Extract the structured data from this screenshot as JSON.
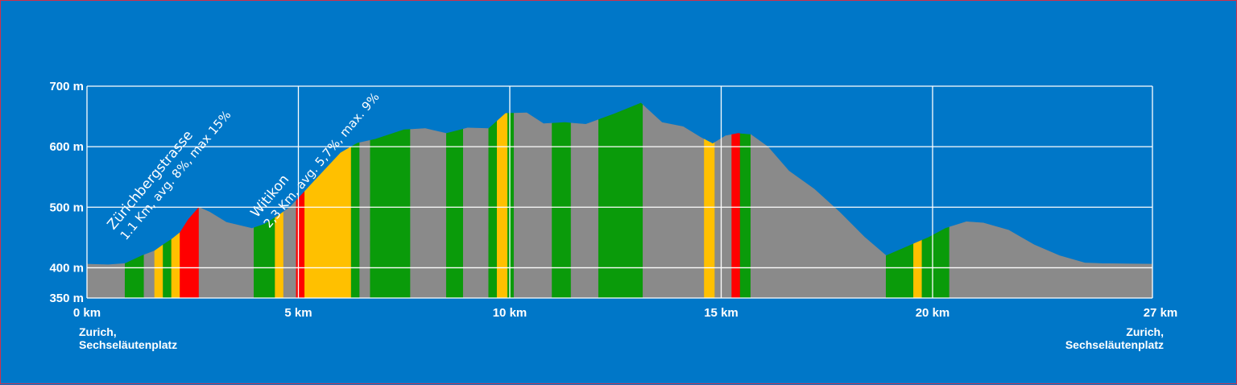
{
  "chart_data": {
    "type": "area",
    "title": "",
    "xlabel": "",
    "ylabel": "",
    "xlim": [
      0,
      27
    ],
    "ylim": [
      350,
      700
    ],
    "x_ticks": [
      {
        "value": 0,
        "label": "0 km"
      },
      {
        "value": 5,
        "label": "5 km"
      },
      {
        "value": 10,
        "label": "10 km"
      },
      {
        "value": 15,
        "label": "15 km"
      },
      {
        "value": 20,
        "label": "20 km"
      },
      {
        "value": 25.2,
        "label": "27 km"
      }
    ],
    "y_ticks": [
      {
        "value": 350,
        "label": "350 m"
      },
      {
        "value": 400,
        "label": "400 m"
      },
      {
        "value": 500,
        "label": "500 m"
      },
      {
        "value": 600,
        "label": "600 m"
      },
      {
        "value": 700,
        "label": "700 m"
      }
    ],
    "grid": true,
    "start_label": [
      "Zurich,",
      "Sechseläutenplatz"
    ],
    "end_label": [
      "Zurich,",
      "Sechseläutenplatz"
    ],
    "climbs": [
      {
        "name": "Zürichbergstrasse",
        "detail": "1.1 Km, avg. 8%, max 15%",
        "start_km": 1.5,
        "end_km": 2.6
      },
      {
        "name": "Witikon",
        "detail": "2,3 Km, avg. 5,7%, max. 9%",
        "start_km": 3.7,
        "end_km": 6.0
      }
    ],
    "gradient_colors": {
      "flat": "#8a8a8a",
      "moderate": "#0a9b0a",
      "steep": "#ffc000",
      "very_steep": "#ff0000"
    },
    "profile": [
      {
        "x": 0.0,
        "y": 406
      },
      {
        "x": 0.5,
        "y": 405
      },
      {
        "x": 0.9,
        "y": 407
      },
      {
        "x": 1.3,
        "y": 420
      },
      {
        "x": 1.6,
        "y": 428
      },
      {
        "x": 1.8,
        "y": 438
      },
      {
        "x": 2.0,
        "y": 447
      },
      {
        "x": 2.2,
        "y": 458
      },
      {
        "x": 2.4,
        "y": 480
      },
      {
        "x": 2.65,
        "y": 500
      },
      {
        "x": 2.9,
        "y": 492
      },
      {
        "x": 3.3,
        "y": 475
      },
      {
        "x": 3.9,
        "y": 465
      },
      {
        "x": 4.2,
        "y": 472
      },
      {
        "x": 4.5,
        "y": 485
      },
      {
        "x": 4.8,
        "y": 500
      },
      {
        "x": 5.2,
        "y": 530
      },
      {
        "x": 5.6,
        "y": 560
      },
      {
        "x": 6.0,
        "y": 590
      },
      {
        "x": 6.4,
        "y": 606
      },
      {
        "x": 6.8,
        "y": 612
      },
      {
        "x": 7.5,
        "y": 628
      },
      {
        "x": 8.0,
        "y": 630
      },
      {
        "x": 8.5,
        "y": 622
      },
      {
        "x": 9.0,
        "y": 631
      },
      {
        "x": 9.5,
        "y": 630
      },
      {
        "x": 9.9,
        "y": 655
      },
      {
        "x": 10.4,
        "y": 656
      },
      {
        "x": 10.8,
        "y": 638
      },
      {
        "x": 11.3,
        "y": 640
      },
      {
        "x": 11.8,
        "y": 637
      },
      {
        "x": 12.5,
        "y": 655
      },
      {
        "x": 13.1,
        "y": 672
      },
      {
        "x": 13.6,
        "y": 640
      },
      {
        "x": 14.1,
        "y": 633
      },
      {
        "x": 14.5,
        "y": 616
      },
      {
        "x": 14.8,
        "y": 605
      },
      {
        "x": 15.1,
        "y": 618
      },
      {
        "x": 15.4,
        "y": 622
      },
      {
        "x": 15.7,
        "y": 620
      },
      {
        "x": 16.1,
        "y": 600
      },
      {
        "x": 16.6,
        "y": 560
      },
      {
        "x": 17.2,
        "y": 530
      },
      {
        "x": 17.8,
        "y": 492
      },
      {
        "x": 18.4,
        "y": 450
      },
      {
        "x": 18.9,
        "y": 420
      },
      {
        "x": 19.4,
        "y": 435
      },
      {
        "x": 19.9,
        "y": 450
      },
      {
        "x": 20.3,
        "y": 465
      },
      {
        "x": 20.8,
        "y": 476
      },
      {
        "x": 21.2,
        "y": 474
      },
      {
        "x": 21.8,
        "y": 462
      },
      {
        "x": 22.4,
        "y": 438
      },
      {
        "x": 23.0,
        "y": 420
      },
      {
        "x": 23.6,
        "y": 408
      },
      {
        "x": 24.0,
        "y": 407
      },
      {
        "x": 25.2,
        "y": 406
      }
    ],
    "segments": [
      {
        "from": 0.0,
        "to": 0.9,
        "grade": "flat"
      },
      {
        "from": 0.9,
        "to": 1.35,
        "grade": "moderate"
      },
      {
        "from": 1.35,
        "to": 1.6,
        "grade": "flat"
      },
      {
        "from": 1.6,
        "to": 1.8,
        "grade": "steep"
      },
      {
        "from": 1.8,
        "to": 2.0,
        "grade": "moderate"
      },
      {
        "from": 2.0,
        "to": 2.2,
        "grade": "steep"
      },
      {
        "from": 2.2,
        "to": 2.65,
        "grade": "very_steep"
      },
      {
        "from": 2.65,
        "to": 3.95,
        "grade": "flat"
      },
      {
        "from": 3.95,
        "to": 4.45,
        "grade": "moderate"
      },
      {
        "from": 4.45,
        "to": 4.65,
        "grade": "steep"
      },
      {
        "from": 4.65,
        "to": 4.95,
        "grade": "flat"
      },
      {
        "from": 4.95,
        "to": 5.15,
        "grade": "very_steep"
      },
      {
        "from": 5.15,
        "to": 6.25,
        "grade": "steep"
      },
      {
        "from": 6.25,
        "to": 6.45,
        "grade": "moderate"
      },
      {
        "from": 6.45,
        "to": 6.7,
        "grade": "flat"
      },
      {
        "from": 6.7,
        "to": 7.65,
        "grade": "moderate"
      },
      {
        "from": 7.65,
        "to": 8.5,
        "grade": "flat"
      },
      {
        "from": 8.5,
        "to": 8.9,
        "grade": "moderate"
      },
      {
        "from": 8.9,
        "to": 9.5,
        "grade": "flat"
      },
      {
        "from": 9.5,
        "to": 9.7,
        "grade": "moderate"
      },
      {
        "from": 9.7,
        "to": 9.95,
        "grade": "steep"
      },
      {
        "from": 9.95,
        "to": 10.1,
        "grade": "moderate"
      },
      {
        "from": 10.1,
        "to": 11.0,
        "grade": "flat"
      },
      {
        "from": 11.0,
        "to": 11.45,
        "grade": "moderate"
      },
      {
        "from": 11.45,
        "to": 12.1,
        "grade": "flat"
      },
      {
        "from": 12.1,
        "to": 13.15,
        "grade": "moderate"
      },
      {
        "from": 13.15,
        "to": 14.6,
        "grade": "flat"
      },
      {
        "from": 14.6,
        "to": 14.85,
        "grade": "steep"
      },
      {
        "from": 14.85,
        "to": 15.25,
        "grade": "flat"
      },
      {
        "from": 15.25,
        "to": 15.45,
        "grade": "very_steep"
      },
      {
        "from": 15.45,
        "to": 15.7,
        "grade": "moderate"
      },
      {
        "from": 15.7,
        "to": 18.9,
        "grade": "flat"
      },
      {
        "from": 18.9,
        "to": 19.55,
        "grade": "moderate"
      },
      {
        "from": 19.55,
        "to": 19.75,
        "grade": "steep"
      },
      {
        "from": 19.75,
        "to": 20.4,
        "grade": "moderate"
      },
      {
        "from": 20.4,
        "to": 25.2,
        "grade": "flat"
      }
    ]
  }
}
